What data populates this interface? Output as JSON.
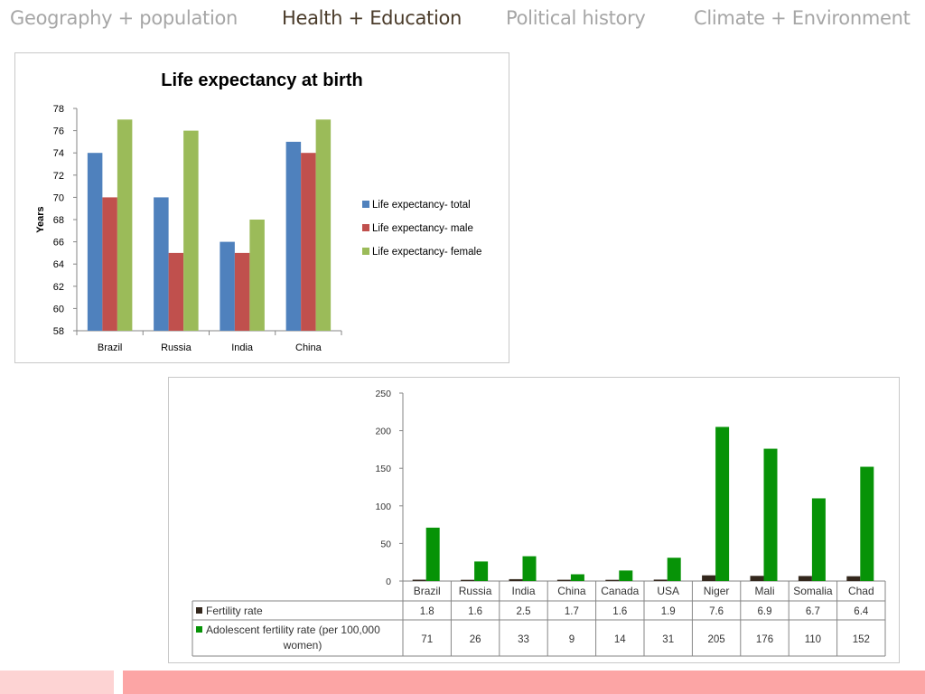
{
  "tabs": [
    {
      "label": "Geography + population",
      "active": false
    },
    {
      "label": "Health + Education",
      "active": true
    },
    {
      "label": "Political history",
      "active": false
    },
    {
      "label": "Climate + Environment",
      "active": false
    }
  ],
  "chart_data": [
    {
      "type": "bar",
      "title": "Life expectancy at birth",
      "xlabel": "",
      "ylabel": "Years",
      "ylim": [
        58,
        78
      ],
      "yticks": [
        58,
        60,
        62,
        64,
        66,
        68,
        70,
        72,
        74,
        76,
        78
      ],
      "categories": [
        "Brazil",
        "Russia",
        "India",
        "China"
      ],
      "series": [
        {
          "name": "Life expectancy- total",
          "values": [
            74,
            70,
            66,
            75
          ],
          "color": "#4f81bd"
        },
        {
          "name": "Life expectancy- male",
          "values": [
            70,
            65,
            65,
            74
          ],
          "color": "#c0504d"
        },
        {
          "name": "Life expectancy- female",
          "values": [
            77,
            76,
            68,
            77
          ],
          "color": "#9bbb59"
        }
      ],
      "legend": "right",
      "grid": false
    },
    {
      "type": "bar",
      "title": "",
      "xlabel": "",
      "ylabel": "",
      "ylim": [
        0,
        250
      ],
      "yticks": [
        0,
        50,
        100,
        150,
        200,
        250
      ],
      "categories": [
        "Brazil",
        "Russia",
        "India",
        "China",
        "Canada",
        "USA",
        "Niger",
        "Mali",
        "Somalia",
        "Chad"
      ],
      "series": [
        {
          "name": "Fertility rate",
          "values": [
            1.8,
            1.6,
            2.5,
            1.7,
            1.6,
            1.9,
            7.6,
            6.9,
            6.7,
            6.4
          ],
          "labels": [
            "1.8",
            "1.6",
            "2.5",
            "1.7",
            "1.6",
            "1.9",
            "7.6",
            "6.9",
            "6.7",
            "6.4"
          ],
          "color": "#33271c"
        },
        {
          "name": "Adolescent fertility rate (per 100,000 women)",
          "values": [
            71,
            26,
            33,
            9,
            14,
            31,
            205,
            176,
            110,
            152
          ],
          "labels": [
            "71",
            "26",
            "33",
            "9",
            "14",
            "31",
            "205",
            "176",
            "110",
            "152"
          ],
          "color": "#079307"
        }
      ],
      "legend": "data-table",
      "grid": false
    }
  ]
}
